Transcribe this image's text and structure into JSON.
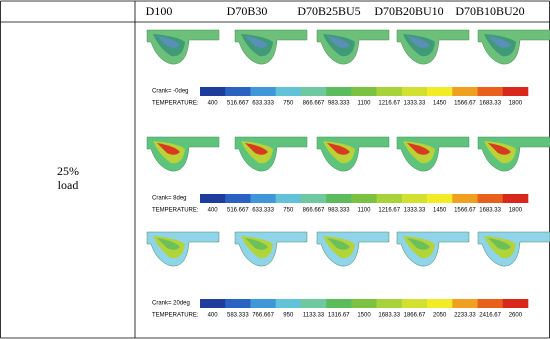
{
  "header": {
    "columns": [
      "D100",
      "D70B30",
      "D70B25BU5",
      "D70B20BU10",
      "D70B10BU20"
    ]
  },
  "row_label": [
    "25%",
    "load"
  ],
  "panels": [
    {
      "crank": "Crank= -0deg",
      "scale_label": "TEMPERATURE:",
      "ticks": [
        "400",
        "516.667",
        "633.333",
        "750",
        "866.667",
        "983.333",
        "1100",
        "1216.67",
        "1333.33",
        "1450",
        "1566.67",
        "1683.33",
        "1800"
      ]
    },
    {
      "crank": "Crank=  8deg",
      "scale_label": "TEMPERATURE:",
      "ticks": [
        "400",
        "516.667",
        "633.333",
        "750",
        "866.667",
        "983.333",
        "1100",
        "1216.67",
        "1333.33",
        "1450",
        "1566.67",
        "1683.33",
        "1800"
      ]
    },
    {
      "crank": "Crank=  20deg",
      "scale_label": "TEMPERATURE:",
      "ticks": [
        "400",
        "583.333",
        "766.667",
        "950",
        "1133.33",
        "1316.67",
        "1500",
        "1683.33",
        "1866.67",
        "2050",
        "2233.33",
        "2416.67",
        "2600"
      ]
    }
  ]
}
